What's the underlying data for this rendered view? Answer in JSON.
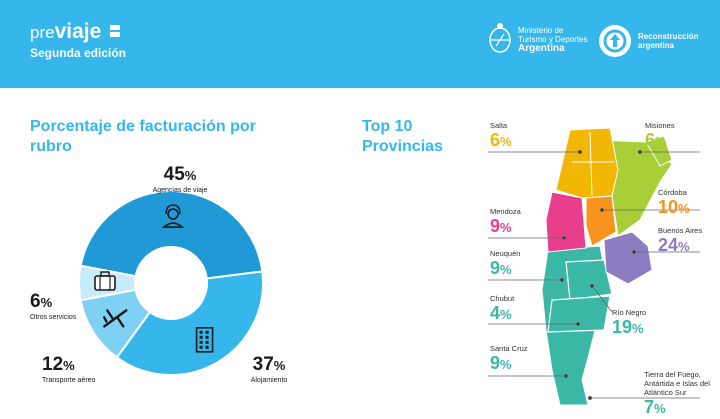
{
  "header": {
    "brand_prefix": "pre",
    "brand_name": "viaje",
    "edition": "Segunda edición",
    "ministry_line1": "Ministerio de",
    "ministry_line2": "Turismo y Deportes",
    "ministry_country": "Argentina",
    "recon_line1": "Reconstrucción",
    "recon_line2": "argentina"
  },
  "colors": {
    "header_bg": "#35b7ec",
    "title": "#35b7ec"
  },
  "chart_data": [
    {
      "type": "pie",
      "title": "Porcentaje de facturación por rubro",
      "donut": true,
      "slices": [
        {
          "label": "Agencias de viaje",
          "value": 45,
          "color": "#1f9ad6",
          "icon": "agent-headset-icon"
        },
        {
          "label": "Alojamiento",
          "value": 37,
          "color": "#35b7ec",
          "icon": "hotel-building-icon"
        },
        {
          "label": "Transporte aéreo",
          "value": 12,
          "color": "#7fd1f4",
          "icon": "airplane-icon"
        },
        {
          "label": "Otros servicios",
          "value": 6,
          "color": "#c6ecfb",
          "icon": "suitcase-icon"
        }
      ]
    },
    {
      "type": "map",
      "title": "Top 10 Provincias",
      "provinces": [
        {
          "name": "Salta",
          "value": 6,
          "color": "#f2b705"
        },
        {
          "name": "Misiones",
          "value": 6,
          "color": "#a9cf38"
        },
        {
          "name": "Córdoba",
          "value": 10,
          "color": "#f7941d"
        },
        {
          "name": "Buenos Aires",
          "value": 24,
          "color": "#8e7cc3"
        },
        {
          "name": "Mendoza",
          "value": 9,
          "color": "#e83e8c"
        },
        {
          "name": "Neuquén",
          "value": 9,
          "color": "#3bb7a6"
        },
        {
          "name": "Río Negro",
          "value": 19,
          "color": "#3bb7a6"
        },
        {
          "name": "Chubut",
          "value": 4,
          "color": "#3bb7a6"
        },
        {
          "name": "Santa Cruz",
          "value": 9,
          "color": "#3bb7a6"
        },
        {
          "name": "Tierra del Fuego, Antártida e Islas del Atlántico Sur",
          "value": 7,
          "color": "#3bb7a6"
        }
      ]
    }
  ]
}
